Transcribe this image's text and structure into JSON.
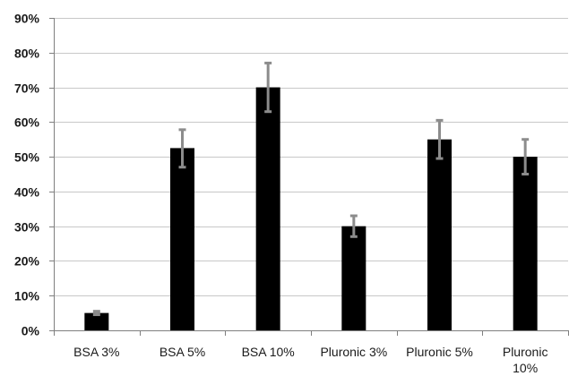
{
  "chart_data": {
    "type": "bar",
    "categories": [
      [
        "BSA 3%"
      ],
      [
        "BSA 5%"
      ],
      [
        "BSA 10%"
      ],
      [
        "Pluronic 3%"
      ],
      [
        "Pluronic 5%"
      ],
      [
        "Pluronic",
        "10%"
      ]
    ],
    "values": [
      0.05,
      0.525,
      0.7,
      0.3,
      0.55,
      0.5
    ],
    "error_low": [
      0.045,
      0.47,
      0.63,
      0.27,
      0.495,
      0.45
    ],
    "error_high": [
      0.055,
      0.578,
      0.77,
      0.33,
      0.605,
      0.55
    ],
    "ylim": [
      0,
      0.9
    ],
    "yticks": [
      0,
      0.1,
      0.2,
      0.3,
      0.4,
      0.5,
      0.6,
      0.7,
      0.8,
      0.9
    ],
    "ytick_labels": [
      "0%",
      "10%",
      "20%",
      "30%",
      "40%",
      "50%",
      "60%",
      "70%",
      "80%",
      "90%"
    ],
    "grid": true,
    "bar_color": "#000000",
    "error_color": "#8c8c8c",
    "grid_color": "#c8c8c8",
    "axis_color": "#7f7f7f"
  }
}
